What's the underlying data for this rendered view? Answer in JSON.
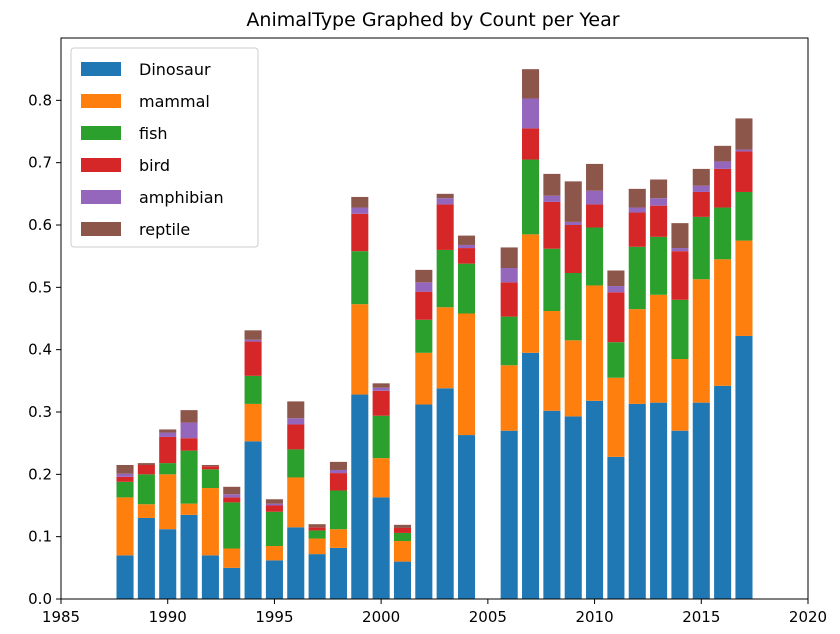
{
  "chart_data": {
    "type": "bar",
    "stacked": true,
    "title": "AnimalType Graphed by Count per Year",
    "xlabel": "",
    "ylabel": "",
    "xlim": [
      1985,
      2020
    ],
    "ylim": [
      0,
      0.9
    ],
    "xticks": [
      "1985",
      "1990",
      "1995",
      "2000",
      "2005",
      "2010",
      "2015",
      "2020"
    ],
    "yticks": [
      "0.0",
      "0.1",
      "0.2",
      "0.3",
      "0.4",
      "0.5",
      "0.6",
      "0.7",
      "0.8"
    ],
    "legend_position": "top-left",
    "grid": false,
    "x": [
      1988,
      1989,
      1990,
      1991,
      1992,
      1993,
      1994,
      1995,
      1996,
      1997,
      1998,
      1999,
      2000,
      2001,
      2002,
      2003,
      2004,
      2006,
      2007,
      2008,
      2009,
      2010,
      2011,
      2012,
      2013,
      2014,
      2015,
      2016,
      2017
    ],
    "series": [
      {
        "name": "Dinosaur",
        "color": "#1f77b4",
        "values": [
          0.07,
          0.13,
          0.112,
          0.135,
          0.07,
          0.05,
          0.253,
          0.062,
          0.115,
          0.072,
          0.082,
          0.328,
          0.163,
          0.06,
          0.312,
          0.338,
          0.263,
          0.27,
          0.395,
          0.302,
          0.293,
          0.318,
          0.228,
          0.313,
          0.315,
          0.27,
          0.315,
          0.342,
          0.422
        ]
      },
      {
        "name": "mammal",
        "color": "#ff7f0e",
        "values": [
          0.093,
          0.022,
          0.088,
          0.018,
          0.108,
          0.031,
          0.06,
          0.023,
          0.08,
          0.025,
          0.03,
          0.145,
          0.063,
          0.033,
          0.083,
          0.13,
          0.195,
          0.105,
          0.19,
          0.16,
          0.122,
          0.185,
          0.127,
          0.152,
          0.173,
          0.115,
          0.198,
          0.203,
          0.153
        ]
      },
      {
        "name": "fish",
        "color": "#2ca02c",
        "values": [
          0.025,
          0.048,
          0.018,
          0.085,
          0.03,
          0.074,
          0.045,
          0.055,
          0.045,
          0.013,
          0.062,
          0.085,
          0.068,
          0.013,
          0.053,
          0.092,
          0.08,
          0.078,
          0.12,
          0.1,
          0.108,
          0.093,
          0.057,
          0.1,
          0.093,
          0.095,
          0.1,
          0.083,
          0.078
        ]
      },
      {
        "name": "bird",
        "color": "#d62728",
        "values": [
          0.008,
          0.015,
          0.042,
          0.02,
          0.005,
          0.008,
          0.055,
          0.01,
          0.04,
          0.005,
          0.028,
          0.06,
          0.04,
          0.008,
          0.045,
          0.073,
          0.025,
          0.055,
          0.05,
          0.075,
          0.077,
          0.037,
          0.08,
          0.055,
          0.05,
          0.078,
          0.04,
          0.062,
          0.065
        ]
      },
      {
        "name": "amphibian",
        "color": "#9467bd",
        "values": [
          0.005,
          0,
          0.007,
          0.025,
          0,
          0.005,
          0.003,
          0.003,
          0.01,
          0,
          0.005,
          0.01,
          0.005,
          0,
          0.015,
          0.01,
          0.005,
          0.023,
          0.048,
          0.01,
          0.005,
          0.022,
          0.01,
          0.008,
          0.012,
          0.005,
          0.01,
          0.012,
          0.003
        ]
      },
      {
        "name": "reptile",
        "color": "#8c564b",
        "values": [
          0.014,
          0.003,
          0.005,
          0.02,
          0.002,
          0.012,
          0.015,
          0.007,
          0.027,
          0.005,
          0.013,
          0.017,
          0.007,
          0.005,
          0.02,
          0.007,
          0.015,
          0.033,
          0.047,
          0.035,
          0.065,
          0.043,
          0.025,
          0.03,
          0.03,
          0.04,
          0.027,
          0.025,
          0.05
        ]
      }
    ]
  }
}
